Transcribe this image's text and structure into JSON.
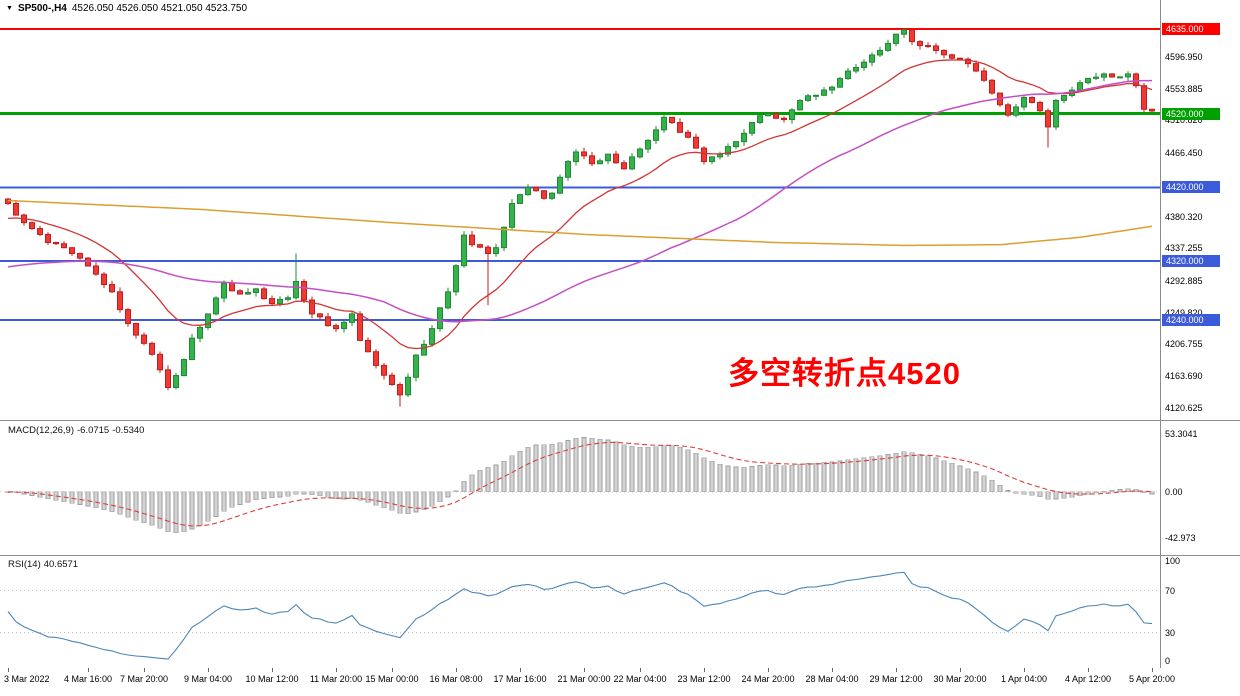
{
  "header": {
    "dropdown_icon": "▼",
    "symbol": "SP500-,H4",
    "ohlc": "4526.050 4526.050 4521.050 4523.750"
  },
  "annotation": {
    "text": "多空转折点4520",
    "color": "#ff0000"
  },
  "colors": {
    "bull": "#33b34a",
    "bull_border": "#1f8a35",
    "bear": "#ee3a33",
    "bear_border": "#c41c1c",
    "histogram": "#d4d4d4",
    "histogram_border": "#9e9e9e",
    "signal": "#d84040",
    "rsi_line": "#4a86b8",
    "separator": "#8c8c8c",
    "level_red": "#ff0000",
    "level_green": "#00a000",
    "level_blue": "#3b5bdb"
  },
  "chart_data": [
    {
      "type": "candlestick",
      "symbol": "SP500-",
      "timeframe": "H4",
      "ylim": [
        4112,
        4650
      ],
      "candle_count": 144,
      "last_ohlc": {
        "open": 4526.05,
        "high": 4526.05,
        "low": 4521.05,
        "close": 4523.75
      },
      "close_keypoints": [
        [
          0,
          4398
        ],
        [
          2,
          4372
        ],
        [
          5,
          4345
        ],
        [
          8,
          4330
        ],
        [
          11,
          4302
        ],
        [
          13,
          4278
        ],
        [
          15,
          4235
        ],
        [
          17,
          4208
        ],
        [
          19,
          4172
        ],
        [
          20,
          4148
        ],
        [
          22,
          4186
        ],
        [
          23,
          4215
        ],
        [
          25,
          4248
        ],
        [
          27,
          4290
        ],
        [
          29,
          4275
        ],
        [
          31,
          4282
        ],
        [
          33,
          4262
        ],
        [
          35,
          4270
        ],
        [
          36,
          4292
        ],
        [
          38,
          4248
        ],
        [
          41,
          4228
        ],
        [
          43,
          4248
        ],
        [
          44,
          4212
        ],
        [
          46,
          4178
        ],
        [
          48,
          4152
        ],
        [
          49,
          4138
        ],
        [
          51,
          4192
        ],
        [
          53,
          4228
        ],
        [
          55,
          4278
        ],
        [
          57,
          4355
        ],
        [
          58,
          4342
        ],
        [
          60,
          4330
        ],
        [
          61,
          4338
        ],
        [
          63,
          4398
        ],
        [
          65,
          4420
        ],
        [
          67,
          4405
        ],
        [
          68,
          4412
        ],
        [
          70,
          4455
        ],
        [
          71,
          4468
        ],
        [
          73,
          4452
        ],
        [
          75,
          4465
        ],
        [
          77,
          4445
        ],
        [
          79,
          4472
        ],
        [
          81,
          4498
        ],
        [
          82,
          4515
        ],
        [
          83,
          4508
        ],
        [
          85,
          4488
        ],
        [
          87,
          4455
        ],
        [
          89,
          4465
        ],
        [
          91,
          4482
        ],
        [
          93,
          4508
        ],
        [
          95,
          4520
        ],
        [
          97,
          4512
        ],
        [
          99,
          4538
        ],
        [
          101,
          4545
        ],
        [
          103,
          4556
        ],
        [
          105,
          4578
        ],
        [
          107,
          4590
        ],
        [
          109,
          4606
        ],
        [
          111,
          4628
        ],
        [
          112,
          4634
        ],
        [
          113,
          4618
        ],
        [
          115,
          4612
        ],
        [
          117,
          4600
        ],
        [
          119,
          4594
        ],
        [
          121,
          4578
        ],
        [
          123,
          4548
        ],
        [
          125,
          4518
        ],
        [
          127,
          4542
        ],
        [
          129,
          4524
        ],
        [
          130,
          4502
        ],
        [
          131,
          4538
        ],
        [
          133,
          4552
        ],
        [
          135,
          4568
        ],
        [
          137,
          4574
        ],
        [
          139,
          4570
        ],
        [
          140,
          4574
        ],
        [
          141,
          4558
        ],
        [
          142,
          4526
        ],
        [
          143,
          4523.75
        ]
      ],
      "wick_overrides": {
        "36": [
          38,
          3
        ],
        "49": [
          3,
          16
        ],
        "60": [
          3,
          70
        ],
        "112": [
          1,
          5
        ],
        "130": [
          3,
          28
        ],
        "143": [
          0.3,
          2.7
        ]
      },
      "levels": [
        {
          "price": 4635,
          "label": "4635.000",
          "color": "#ff0000",
          "width": 2
        },
        {
          "price": 4520,
          "label": "4520.000",
          "color": "#00a000",
          "width": 3
        },
        {
          "price": 4420,
          "label": "4420.000",
          "color": "#3b5bdb",
          "width": 2
        },
        {
          "price": 4320,
          "label": "4320.000",
          "color": "#3b5bdb",
          "width": 2
        },
        {
          "price": 4240,
          "label": "4240.000",
          "color": "#3b5bdb",
          "width": 2
        }
      ],
      "scale_labels": [
        {
          "price": 4596.95,
          "label": "4596.950"
        },
        {
          "price": 4553.885,
          "label": "4553.885"
        },
        {
          "price": 4510.82,
          "label": "4510.820"
        },
        {
          "price": 4466.45,
          "label": "4466.450"
        },
        {
          "price": 4380.32,
          "label": "4380.320"
        },
        {
          "price": 4337.255,
          "label": "4337.255"
        },
        {
          "price": 4292.885,
          "label": "4292.885"
        },
        {
          "price": 4249.82,
          "label": "4249.820"
        },
        {
          "price": 4206.755,
          "label": "4206.755"
        },
        {
          "price": 4163.69,
          "label": "4163.690"
        },
        {
          "price": 4120.625,
          "label": "4120.625"
        }
      ],
      "moving_averages": [
        {
          "name": "ma-fast-red",
          "type": "ema",
          "period": 16,
          "seed": 4375,
          "color": "#d23535",
          "width": 1.3
        },
        {
          "name": "ma-mid-magenta",
          "type": "sma",
          "period": 48,
          "seed": 4310,
          "color": "#c44fc4",
          "width": 1.5
        },
        {
          "name": "ma-slow-orange",
          "color": "#dc9f2f",
          "width": 1.5,
          "keypoints": [
            [
              0,
              4402
            ],
            [
              24,
              4390
            ],
            [
              48,
              4372
            ],
            [
              72,
              4356
            ],
            [
              96,
              4345
            ],
            [
              112,
              4341
            ],
            [
              124,
              4342
            ],
            [
              134,
              4352
            ],
            [
              143,
              4367
            ]
          ]
        }
      ],
      "x_axis_labels": [
        [
          0,
          "3 Mar 2022"
        ],
        [
          10,
          "4 Mar 16:00"
        ],
        [
          17,
          "7 Mar 20:00"
        ],
        [
          25,
          "9 Mar 04:00"
        ],
        [
          33,
          "10 Mar 12:00"
        ],
        [
          41,
          "11 Mar 20:00"
        ],
        [
          48,
          "15 Mar 00:00"
        ],
        [
          56,
          "16 Mar 08:00"
        ],
        [
          64,
          "17 Mar 16:00"
        ],
        [
          72,
          "21 Mar 00:00"
        ],
        [
          79,
          "22 Mar 04:00"
        ],
        [
          87,
          "23 Mar 12:00"
        ],
        [
          95,
          "24 Mar 20:00"
        ],
        [
          103,
          "28 Mar 04:00"
        ],
        [
          111,
          "29 Mar 12:00"
        ],
        [
          119,
          "30 Mar 20:00"
        ],
        [
          127,
          "1 Apr 04:00"
        ],
        [
          135,
          "4 Apr 12:00"
        ],
        [
          143,
          "5 Apr 20:00"
        ]
      ]
    },
    {
      "type": "macd",
      "label": "MACD(12,26,9)",
      "value_main": "-6.0715",
      "value_signal": "-0.5340",
      "params": [
        12,
        26,
        9
      ],
      "ylim": [
        -55,
        63
      ],
      "hist_extremes": [
        -38,
        50.5
      ],
      "scale_labels": [
        {
          "value": 53.3041,
          "label": "53.3041"
        },
        {
          "value": 0,
          "label": "0.00"
        },
        {
          "value": -42.973,
          "label": "-42.973"
        }
      ]
    },
    {
      "type": "rsi",
      "label": "RSI(14)",
      "value": "40.6571",
      "period": 14,
      "ylim": [
        0,
        100
      ],
      "levels": [
        70,
        30
      ],
      "line_color": "#4a86b8",
      "scale_labels": [
        {
          "value": 100,
          "label": "100"
        },
        {
          "value": 70,
          "label": "70"
        },
        {
          "value": 30,
          "label": "30"
        },
        {
          "value": 0,
          "label": "0"
        }
      ]
    }
  ]
}
